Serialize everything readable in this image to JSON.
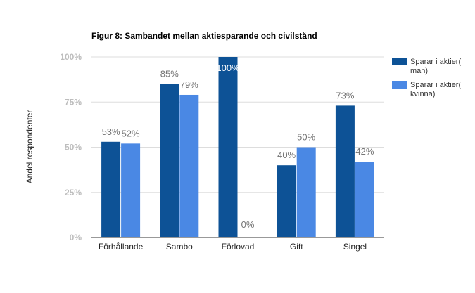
{
  "chart_data": {
    "type": "bar",
    "title": "Figur 8: Sambandet mellan aktiesparande och civilstånd",
    "ylabel": "Andel respondenter",
    "xlabel": "",
    "ylim": [
      0,
      100
    ],
    "yticks": [
      0,
      25,
      50,
      75,
      100
    ],
    "ytick_labels": [
      "0%",
      "25%",
      "50%",
      "75%",
      "100%"
    ],
    "grid": true,
    "legend_position": "right",
    "categories": [
      "Förhållande",
      "Sambo",
      "Förlovad",
      "Gift",
      "Singel"
    ],
    "series": [
      {
        "name": "Sparar i aktier(man)",
        "legend_lines": [
          "Sparar i aktier(",
          "man)"
        ],
        "color": "#0d5296",
        "values": [
          53,
          85,
          100,
          40,
          73
        ],
        "labels": [
          "53%",
          "85%",
          "100%",
          "40%",
          "73%"
        ]
      },
      {
        "name": "Sparar i aktier(kvinna)",
        "legend_lines": [
          "Sparar i aktier(",
          "kvinna)"
        ],
        "color": "#4a88e4",
        "values": [
          52,
          79,
          0,
          50,
          42
        ],
        "labels": [
          "52%",
          "79%",
          "0%",
          "50%",
          "42%"
        ]
      }
    ]
  }
}
